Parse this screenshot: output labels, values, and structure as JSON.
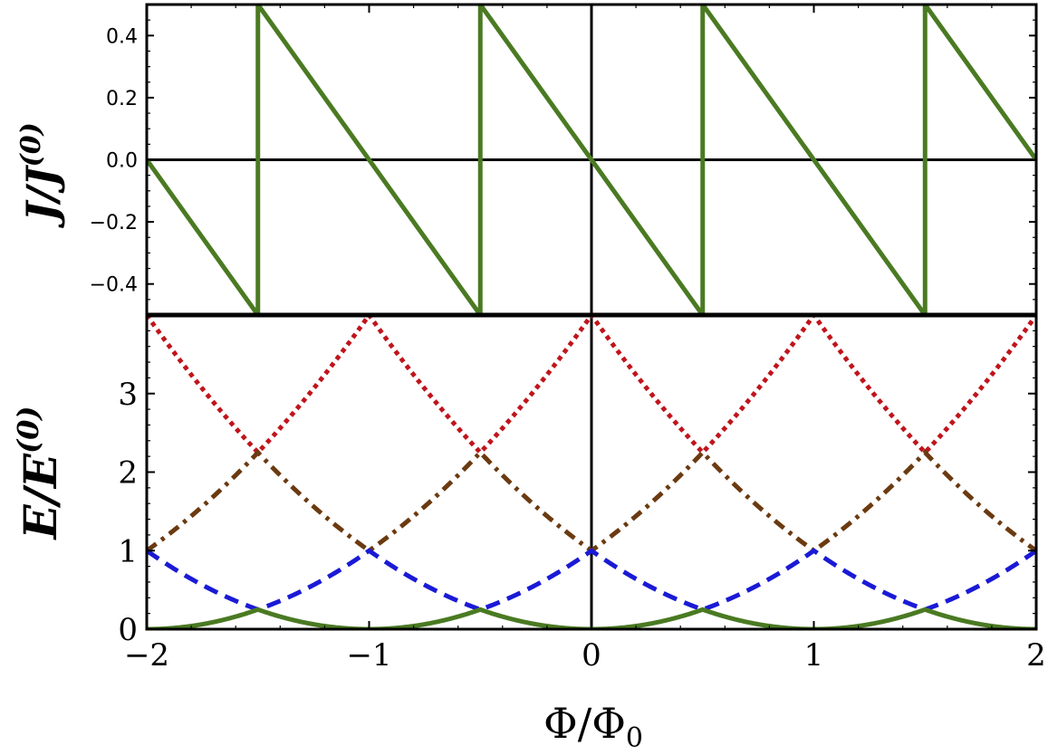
{
  "chart_data": [
    {
      "type": "line",
      "panel": "top",
      "ylabel": {
        "main": "J/J",
        "sup": "(0)"
      },
      "xlim": [
        -2,
        2
      ],
      "ylim": [
        -0.5,
        0.5
      ],
      "yticks": [
        {
          "value": 0.4,
          "label": "0.4"
        },
        {
          "value": 0.2,
          "label": "0.2"
        },
        {
          "value": 0.0,
          "label": "0.0"
        },
        {
          "value": -0.2,
          "label": "−0.2"
        },
        {
          "value": -0.4,
          "label": "−0.4"
        }
      ],
      "grid": false,
      "series": [
        {
          "style": "solid",
          "color": "#4a7a22",
          "x": [
            -2,
            -1.5,
            -1.5,
            -0.5,
            -0.5,
            0.5,
            0.5,
            1.5,
            1.5,
            2
          ],
          "y": [
            0,
            -0.5,
            0.5,
            -0.5,
            0.5,
            -0.5,
            0.5,
            -0.5,
            0.5,
            0
          ]
        }
      ]
    },
    {
      "type": "line",
      "panel": "bottom",
      "ylabel": {
        "main": "E/E",
        "sup": "(0)"
      },
      "xlabel": "Φ/Φ",
      "xlabel_sub": "0",
      "xlim": [
        -2,
        2
      ],
      "ylim": [
        0,
        4
      ],
      "yticks": [
        {
          "value": 0,
          "label": "0"
        },
        {
          "value": 1,
          "label": "1"
        },
        {
          "value": 2,
          "label": "2"
        },
        {
          "value": 3,
          "label": "3"
        }
      ],
      "xticks": [
        {
          "value": -2,
          "label": "−2"
        },
        {
          "value": -1,
          "label": "−1"
        },
        {
          "value": 0,
          "label": "0"
        },
        {
          "value": 1,
          "label": "1"
        },
        {
          "value": 2,
          "label": "2"
        }
      ],
      "grid": false,
      "series": [
        {
          "style": "solid",
          "color": "#4a7a22",
          "band": 0
        },
        {
          "style": "dashed",
          "color": "#1a1ad6",
          "band": 1
        },
        {
          "style": "dashdot",
          "color": "#6b3a10",
          "band": 2
        },
        {
          "style": "dotted",
          "color": "#c0141c",
          "band": 3
        }
      ]
    }
  ]
}
